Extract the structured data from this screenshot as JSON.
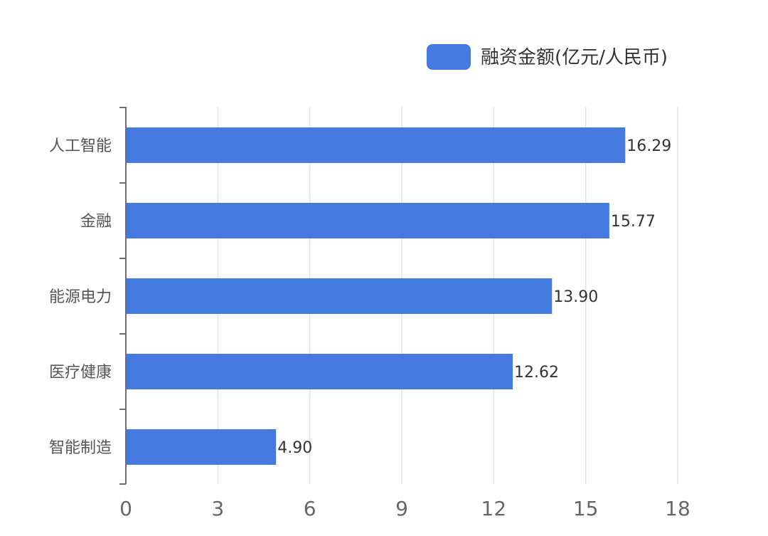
{
  "chart_data": {
    "type": "bar",
    "orientation": "horizontal",
    "categories": [
      "人工智能",
      "金融",
      "能源电力",
      "医疗健康",
      "智能制造"
    ],
    "series": [
      {
        "name": "融资金额(亿元/人民币)",
        "values": [
          16.29,
          15.77,
          13.9,
          12.62,
          4.9
        ],
        "value_labels": [
          "16.29",
          "15.77",
          "13.90",
          "12.62",
          "4.90"
        ]
      }
    ],
    "xlim": [
      0,
      18
    ],
    "x_ticks": [
      0,
      3,
      6,
      9,
      12,
      15,
      18
    ],
    "grid": "vertical",
    "legend_position": "top-right",
    "colors": {
      "bar": "#4479e0",
      "grid": "#dfe3ea",
      "axis": "#6e6e6e"
    }
  }
}
